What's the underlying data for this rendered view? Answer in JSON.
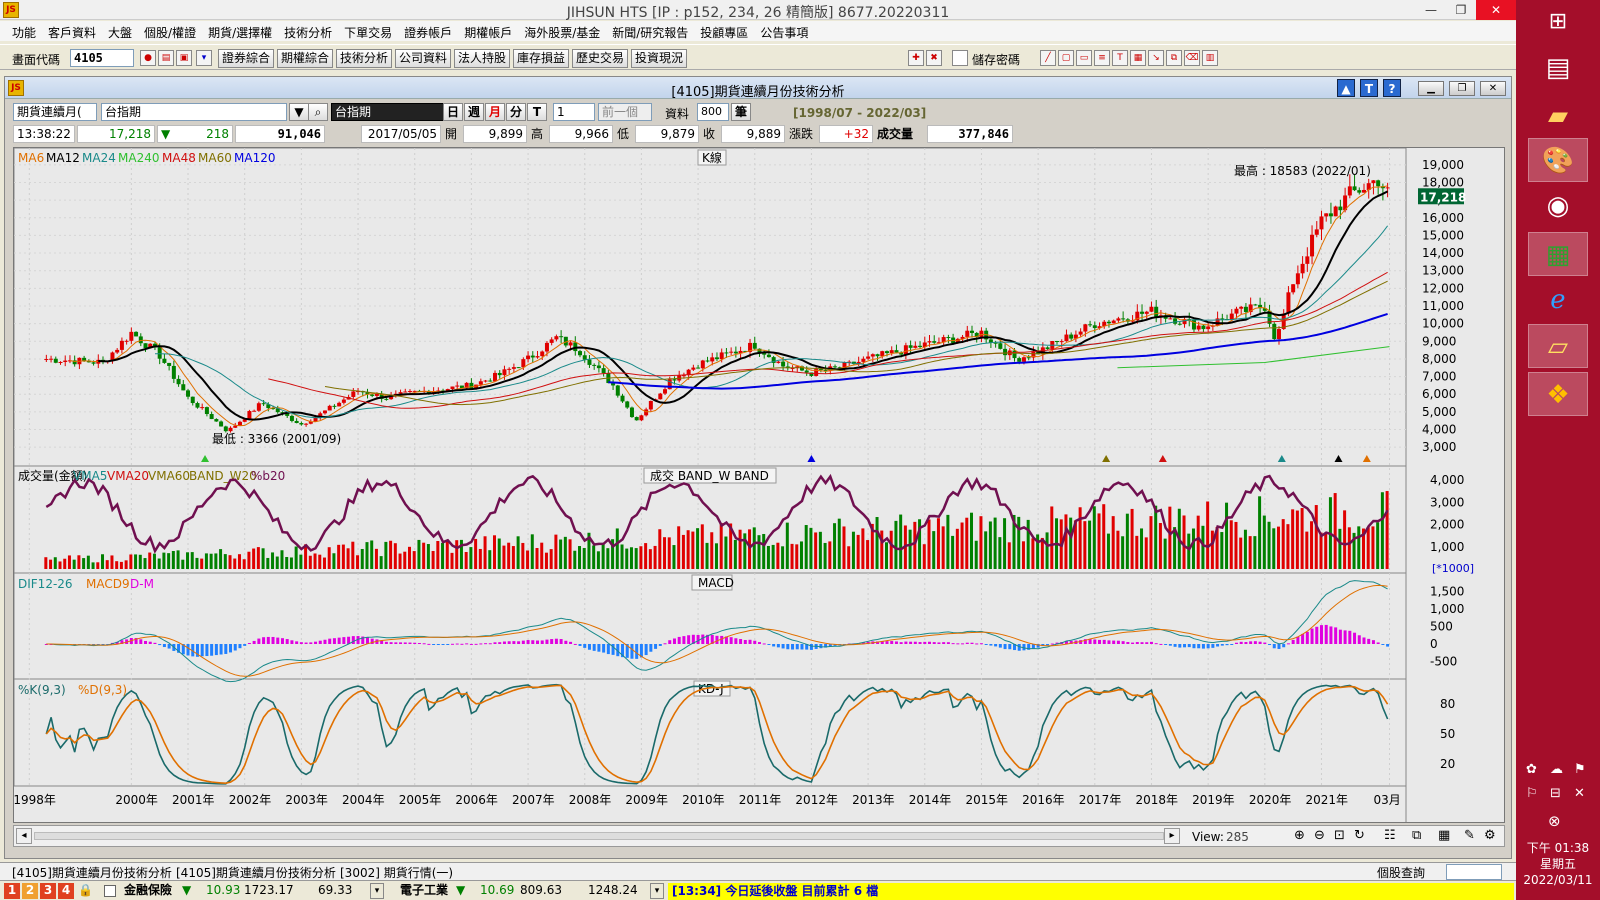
{
  "window": {
    "title": "JIHSUN HTS [IP : p152, 234, 26 精簡版] 8677.20220311",
    "logo": "JS",
    "min": "—",
    "max": "❐",
    "close": "✕"
  },
  "menu": [
    "功能",
    "客戶資料",
    "大盤",
    "個股/權證",
    "期貨/選擇權",
    "技術分析",
    "下單交易",
    "證券帳戶",
    "期權帳戶",
    "海外股票/基金",
    "新聞/研究報告",
    "投顧專區",
    "公告事項"
  ],
  "toolbar": {
    "code_label": "畫面代碼",
    "code_value": "4105",
    "buttons": [
      "證券綜合",
      "期權綜合",
      "技術分析",
      "公司資料",
      "法人持股",
      "庫存損益",
      "歷史交易",
      "投資現況"
    ],
    "save_password": "儲存密碼"
  },
  "doc": {
    "title": "[4105]期貨連續月份技術分析",
    "controls": {
      "mode": "期貨連續月(",
      "symbol": "台指期",
      "symbol_name": "台指期",
      "periods": [
        "日",
        "週",
        "月",
        "分",
        "T"
      ],
      "interval": "1",
      "prev": "前一個",
      "data_label": "資料",
      "data_count": "800",
      "unit": "筆",
      "range": "[1998/07 - 2022/03]"
    },
    "info": {
      "time": "13:38:22",
      "price": "17,218",
      "change": "218",
      "volume": "91,046",
      "date": "2017/05/05",
      "open_label": "開",
      "open": "9,899",
      "high_label": "高",
      "high": "9,966",
      "low_label": "低",
      "low": "9,879",
      "close_label": "收",
      "close": "9,889",
      "chg_label": "漲跌",
      "chg": "+32",
      "vol_label": "成交量",
      "vol": "377,846"
    }
  },
  "chart_data": [
    {
      "type": "line",
      "panel": "K線",
      "legend": [
        "MA6",
        "MA12",
        "MA24",
        "MA240",
        "MA48",
        "MA60",
        "MA120"
      ],
      "legend_colors": [
        "#e07000",
        "#000000",
        "#1a8a8a",
        "#30c030",
        "#d01010",
        "#807000",
        "#0000e0"
      ],
      "annotation_high": "最高 : 18583 (2022/01)",
      "annotation_low": "最低 : 3366 (2001/09)",
      "current_price": "17,218",
      "y_ticks": [
        "19,000",
        "18,000",
        "17,000",
        "16,000",
        "15,000",
        "14,000",
        "13,000",
        "12,000",
        "11,000",
        "10,000",
        "9,000",
        "8,000",
        "7,000",
        "6,000",
        "5,000",
        "4,000",
        "3,000"
      ],
      "x_ticks": [
        "1998年",
        "2000年",
        "2001年",
        "2002年",
        "2003年",
        "2004年",
        "2005年",
        "2006年",
        "2007年",
        "2008年",
        "2009年",
        "2010年",
        "2011年",
        "2012年",
        "2013年",
        "2014年",
        "2015年",
        "2016年",
        "2017年",
        "2018年",
        "2019年",
        "2020年",
        "2021年",
        "03月"
      ],
      "ylim": [
        2500,
        19500
      ],
      "x": [
        1998.5,
        1999.5,
        2000.0,
        2000.5,
        2001.0,
        2001.7,
        2002.3,
        2003.0,
        2003.3,
        2004.0,
        2004.5,
        2005.0,
        2006.0,
        2006.5,
        2007.0,
        2007.5,
        2007.9,
        2008.5,
        2008.9,
        2009.5,
        2010.0,
        2011.0,
        2011.5,
        2012.0,
        2012.5,
        2013.0,
        2014.0,
        2015.0,
        2015.6,
        2016.0,
        2017.0,
        2018.0,
        2018.9,
        2019.5,
        2020.0,
        2020.2,
        2020.5,
        2021.0,
        2021.5,
        2022.0,
        2022.2
      ],
      "close": [
        8000,
        7800,
        9500,
        8200,
        5800,
        3900,
        5500,
        4300,
        4800,
        6200,
        5800,
        6100,
        6500,
        7100,
        8000,
        9200,
        8500,
        6500,
        4500,
        6800,
        7700,
        8800,
        7600,
        7200,
        7500,
        8000,
        8800,
        9500,
        8000,
        8400,
        10000,
        10700,
        9800,
        10600,
        11000,
        9000,
        12400,
        15800,
        17300,
        18200,
        17218
      ]
    },
    {
      "type": "bar",
      "panel": "成交 BAND_W BAND",
      "legend": [
        "成交量(金額)",
        "VMA5",
        "VMA20",
        "VMA60",
        "BAND_W20",
        "%b20"
      ],
      "legend_colors": [
        "#000000",
        "#1a8a8a",
        "#d01010",
        "#807000",
        "#807000",
        "#701050"
      ],
      "y_ticks": [
        "4,000",
        "3,000",
        "2,000",
        "1,000"
      ],
      "unit": "[*1000]"
    },
    {
      "type": "line",
      "panel": "MACD",
      "legend": [
        "DIF12-26",
        "MACD9",
        "D-M"
      ],
      "legend_colors": [
        "#1a8a8a",
        "#e07000",
        "#e000e0"
      ],
      "y_ticks": [
        "1,500",
        "1,000",
        "500",
        "0",
        "-500"
      ]
    },
    {
      "type": "line",
      "panel": "KD-J",
      "legend": [
        "%K(9,3)",
        "%D(9,3)"
      ],
      "legend_colors": [
        "#1a6a6a",
        "#e07000"
      ],
      "y_ticks": [
        "80",
        "50",
        "20"
      ]
    }
  ],
  "chart_footer": {
    "view_label": "View:",
    "view_value": "285"
  },
  "tabs": [
    "[4105]期貨連續月份技術分析",
    "[4105]期貨連續月份技術分析",
    "[3002] 期貨行情(一)"
  ],
  "status": {
    "stock_query": "個股查詢",
    "item1_name": "金融保險",
    "item1_val": "10.93",
    "item1_a": "1723.17",
    "item1_b": "69.33",
    "item2_name": "電子工業",
    "item2_val": "10.69",
    "item2_a": "809.63",
    "item2_b": "1248.24",
    "ticker": "[13:34] 今日延後收盤 目前累計 6 檔",
    "pages": [
      "1",
      "2",
      "3",
      "4"
    ]
  },
  "clock": {
    "time": "下午 01:38",
    "weekday": "星期五",
    "date": "2022/03/11"
  }
}
